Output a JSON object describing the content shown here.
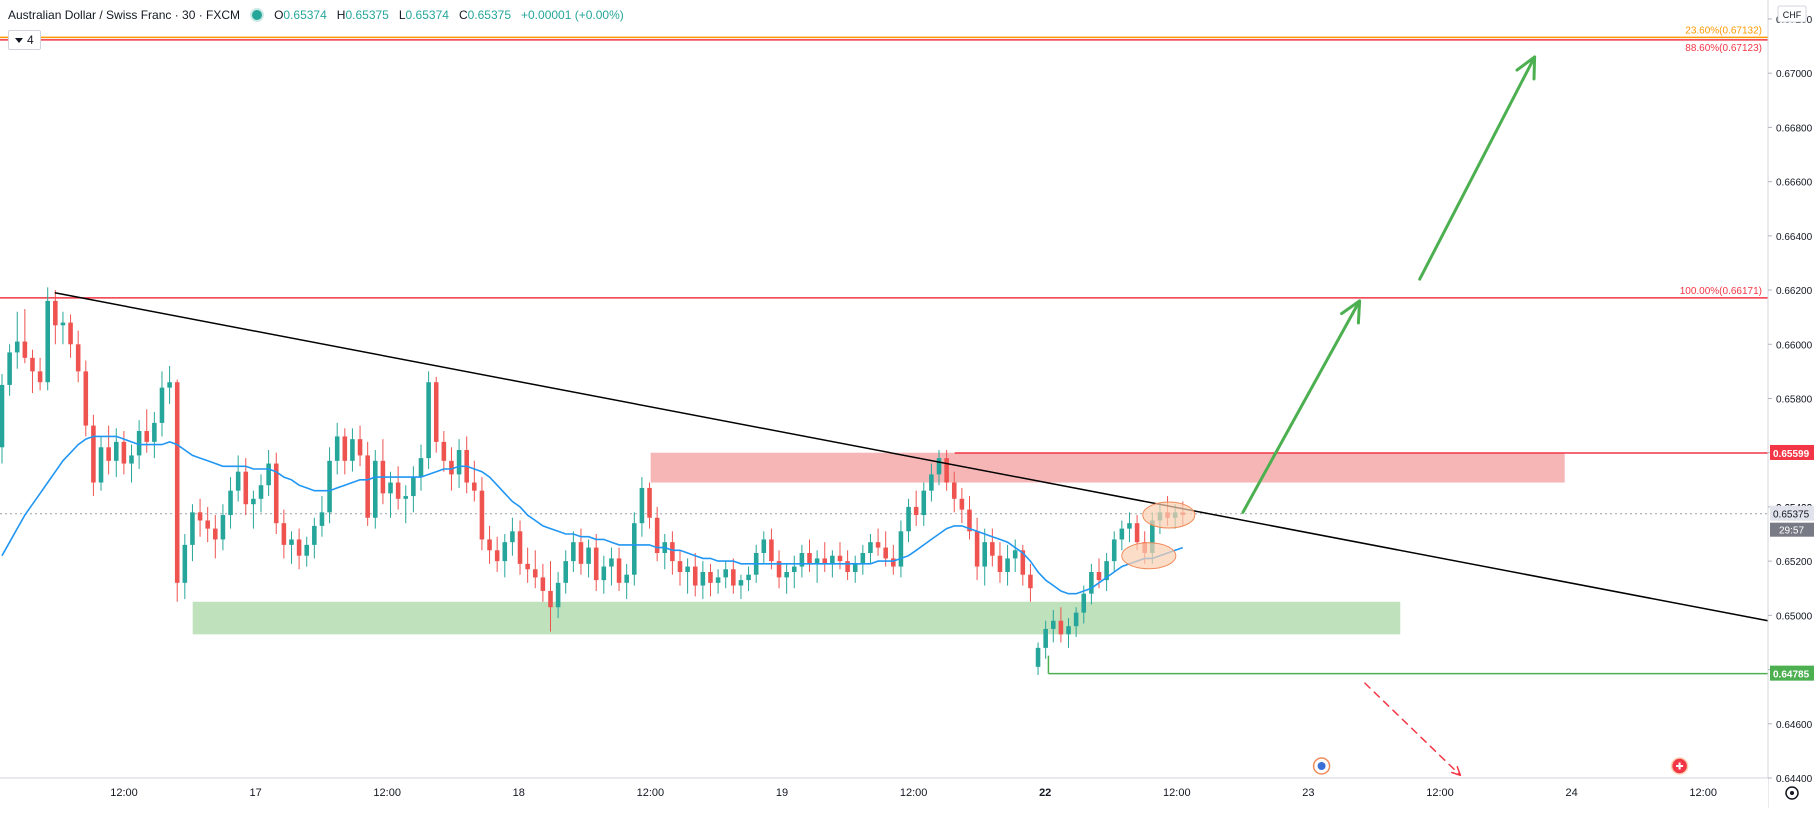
{
  "legend": {
    "symbol": "Australian Dollar / Swiss Franc · 30 · FXCM",
    "open_label": "O",
    "open": "0.65374",
    "high_label": "H",
    "high": "0.65375",
    "low_label": "L",
    "low": "0.65374",
    "close_label": "C",
    "close": "0.65375",
    "change": "+0.00001 (+0.00%)",
    "indicator_count": "4"
  },
  "colors": {
    "bull": "#26a69a",
    "bear": "#ef5350",
    "ma": "#2196f3",
    "trendline": "#000000",
    "resistance_zone": "#f5a9a9",
    "support_zone": "#b4dcb0",
    "arrow": "#4caf50",
    "fib_red": "#f23645",
    "fib_orange": "#ff9800",
    "support_line": "#4caf50",
    "ellipse_fill": "#fbd0b0",
    "ellipse_stroke": "#f08b5b"
  },
  "chart_data": {
    "type": "candlestick",
    "currency": "CHF",
    "ylim": [
      0.644,
      0.6727
    ],
    "x_ticks": [
      "12:00",
      "17",
      "12:00",
      "18",
      "12:00",
      "19",
      "12:00",
      "22",
      "12:00",
      "23",
      "12:00",
      "24",
      "12:00"
    ],
    "y_ticks": [
      "0.67200",
      "0.67000",
      "0.66800",
      "0.66600",
      "0.66400",
      "0.66200",
      "0.66000",
      "0.65800",
      "0.65600",
      "0.65400",
      "0.65200",
      "0.65000",
      "0.64800",
      "0.64600",
      "0.64400"
    ],
    "current_price": "0.65375",
    "countdown": "29:57",
    "hidden_label": "0.65400",
    "price_levels": [
      {
        "value": 0.65599,
        "label": "0.65599",
        "color": "#f23645"
      },
      {
        "value": 0.64785,
        "label": "0.64785",
        "color": "#4caf50"
      }
    ],
    "fib_levels": [
      {
        "value": 0.67132,
        "label": "23.60%(0.67132)",
        "color": "#ff9800"
      },
      {
        "value": 0.67123,
        "label": "88.60%(0.67123)",
        "color": "#f23645"
      },
      {
        "value": 0.66171,
        "label": "100.00%(0.66171)",
        "color": "#f23645"
      }
    ],
    "zones": [
      {
        "name": "resistance",
        "x_start": 0.368,
        "x_end": 0.885,
        "y_low": 0.6549,
        "y_high": 0.656
      },
      {
        "name": "support",
        "x_start": 0.109,
        "x_end": 0.792,
        "y_low": 0.6493,
        "y_high": 0.6505
      }
    ],
    "trendline": {
      "x1": 0.031,
      "y1": 0.6619,
      "x2": 1.0,
      "y2": 0.6498
    },
    "support_line_start": 0.593,
    "candles": [
      [
        0.6562,
        0.6589,
        0.6556,
        0.6585
      ],
      [
        0.6585,
        0.66,
        0.6581,
        0.6597
      ],
      [
        0.6597,
        0.6612,
        0.6591,
        0.6601
      ],
      [
        0.6601,
        0.6613,
        0.6593,
        0.6595
      ],
      [
        0.6595,
        0.6598,
        0.6582,
        0.659
      ],
      [
        0.659,
        0.6595,
        0.6583,
        0.6586
      ],
      [
        0.6586,
        0.6621,
        0.6583,
        0.6616
      ],
      [
        0.6616,
        0.662,
        0.66,
        0.6607
      ],
      [
        0.6607,
        0.6612,
        0.66,
        0.6608
      ],
      [
        0.6608,
        0.6611,
        0.6595,
        0.66
      ],
      [
        0.66,
        0.6605,
        0.6586,
        0.659
      ],
      [
        0.659,
        0.6594,
        0.6566,
        0.657
      ],
      [
        0.657,
        0.6574,
        0.6544,
        0.6549
      ],
      [
        0.6549,
        0.6566,
        0.6546,
        0.6562
      ],
      [
        0.6562,
        0.657,
        0.6552,
        0.6557
      ],
      [
        0.6557,
        0.6569,
        0.6551,
        0.6564
      ],
      [
        0.6564,
        0.6568,
        0.6552,
        0.6556
      ],
      [
        0.6556,
        0.6563,
        0.6549,
        0.6559
      ],
      [
        0.6559,
        0.6572,
        0.6554,
        0.6568
      ],
      [
        0.6568,
        0.6576,
        0.656,
        0.6564
      ],
      [
        0.6564,
        0.6575,
        0.6558,
        0.6571
      ],
      [
        0.6571,
        0.659,
        0.6566,
        0.6584
      ],
      [
        0.6584,
        0.6592,
        0.6578,
        0.6586
      ],
      [
        0.6586,
        0.6587,
        0.6505,
        0.6512
      ],
      [
        0.6512,
        0.653,
        0.6506,
        0.6526
      ],
      [
        0.6526,
        0.6541,
        0.652,
        0.6538
      ],
      [
        0.6538,
        0.6543,
        0.6529,
        0.6535
      ],
      [
        0.6535,
        0.654,
        0.6527,
        0.6532
      ],
      [
        0.6532,
        0.6537,
        0.6521,
        0.6528
      ],
      [
        0.6528,
        0.6541,
        0.6524,
        0.6537
      ],
      [
        0.6537,
        0.6551,
        0.6532,
        0.6546
      ],
      [
        0.6546,
        0.6559,
        0.6542,
        0.6553
      ],
      [
        0.6553,
        0.6558,
        0.6537,
        0.6541
      ],
      [
        0.6541,
        0.6546,
        0.6532,
        0.6543
      ],
      [
        0.6543,
        0.6552,
        0.6538,
        0.6548
      ],
      [
        0.6548,
        0.6561,
        0.6544,
        0.6556
      ],
      [
        0.6556,
        0.656,
        0.653,
        0.6534
      ],
      [
        0.6534,
        0.6539,
        0.6521,
        0.6526
      ],
      [
        0.6526,
        0.6531,
        0.6519,
        0.6528
      ],
      [
        0.6528,
        0.6532,
        0.6517,
        0.6522
      ],
      [
        0.6522,
        0.6529,
        0.6518,
        0.6526
      ],
      [
        0.6526,
        0.6536,
        0.6521,
        0.6533
      ],
      [
        0.6533,
        0.6544,
        0.6529,
        0.6538
      ],
      [
        0.6538,
        0.6562,
        0.6534,
        0.6557
      ],
      [
        0.6557,
        0.6571,
        0.6552,
        0.6566
      ],
      [
        0.6566,
        0.6569,
        0.6552,
        0.6557
      ],
      [
        0.6557,
        0.6569,
        0.6553,
        0.6565
      ],
      [
        0.6565,
        0.657,
        0.6555,
        0.6559
      ],
      [
        0.6559,
        0.6564,
        0.6533,
        0.6536
      ],
      [
        0.6536,
        0.6561,
        0.6532,
        0.6557
      ],
      [
        0.6557,
        0.6565,
        0.6541,
        0.6545
      ],
      [
        0.6545,
        0.6553,
        0.6536,
        0.6549
      ],
      [
        0.6549,
        0.6555,
        0.6539,
        0.6543
      ],
      [
        0.6543,
        0.6548,
        0.6534,
        0.6544
      ],
      [
        0.6544,
        0.6555,
        0.6538,
        0.6551
      ],
      [
        0.6551,
        0.6563,
        0.6546,
        0.6558
      ],
      [
        0.6558,
        0.659,
        0.6554,
        0.6586
      ],
      [
        0.6586,
        0.6588,
        0.656,
        0.6564
      ],
      [
        0.6564,
        0.6568,
        0.6553,
        0.6557
      ],
      [
        0.6557,
        0.6562,
        0.6546,
        0.6552
      ],
      [
        0.6552,
        0.6565,
        0.6547,
        0.6561
      ],
      [
        0.6561,
        0.6566,
        0.6545,
        0.6549
      ],
      [
        0.6549,
        0.6557,
        0.6542,
        0.6546
      ],
      [
        0.6546,
        0.6551,
        0.6524,
        0.6528
      ],
      [
        0.6528,
        0.6533,
        0.6519,
        0.6524
      ],
      [
        0.6524,
        0.6529,
        0.6516,
        0.652
      ],
      [
        0.652,
        0.653,
        0.6514,
        0.6527
      ],
      [
        0.6527,
        0.6536,
        0.6522,
        0.6531
      ],
      [
        0.6531,
        0.6535,
        0.6515,
        0.6519
      ],
      [
        0.6519,
        0.6525,
        0.6512,
        0.6517
      ],
      [
        0.6517,
        0.6524,
        0.651,
        0.6514
      ],
      [
        0.6514,
        0.6519,
        0.6505,
        0.6509
      ],
      [
        0.6509,
        0.652,
        0.6494,
        0.6503
      ],
      [
        0.6503,
        0.6516,
        0.6499,
        0.6512
      ],
      [
        0.6512,
        0.6524,
        0.6508,
        0.652
      ],
      [
        0.652,
        0.6531,
        0.6516,
        0.6527
      ],
      [
        0.6527,
        0.6532,
        0.6515,
        0.6519
      ],
      [
        0.6519,
        0.6528,
        0.6514,
        0.6525
      ],
      [
        0.6525,
        0.653,
        0.6509,
        0.6513
      ],
      [
        0.6513,
        0.6522,
        0.6508,
        0.6518
      ],
      [
        0.6518,
        0.6525,
        0.6511,
        0.6521
      ],
      [
        0.6521,
        0.6525,
        0.6509,
        0.6512
      ],
      [
        0.6512,
        0.6519,
        0.6506,
        0.6515
      ],
      [
        0.6515,
        0.6538,
        0.6511,
        0.6534
      ],
      [
        0.6534,
        0.6551,
        0.6529,
        0.6547
      ],
      [
        0.6547,
        0.6549,
        0.6532,
        0.6536
      ],
      [
        0.6536,
        0.654,
        0.652,
        0.6523
      ],
      [
        0.6523,
        0.653,
        0.6517,
        0.6527
      ],
      [
        0.6527,
        0.6531,
        0.6515,
        0.652
      ],
      [
        0.652,
        0.6524,
        0.6511,
        0.6516
      ],
      [
        0.6516,
        0.6521,
        0.6508,
        0.6518
      ],
      [
        0.6518,
        0.6523,
        0.6507,
        0.6511
      ],
      [
        0.6511,
        0.652,
        0.6506,
        0.6516
      ],
      [
        0.6516,
        0.6519,
        0.6507,
        0.6512
      ],
      [
        0.6512,
        0.6517,
        0.6508,
        0.6514
      ],
      [
        0.6514,
        0.652,
        0.651,
        0.6517
      ],
      [
        0.6517,
        0.6521,
        0.6508,
        0.6511
      ],
      [
        0.6511,
        0.6515,
        0.6506,
        0.6513
      ],
      [
        0.6513,
        0.6518,
        0.6509,
        0.6515
      ],
      [
        0.6515,
        0.6526,
        0.6512,
        0.6523
      ],
      [
        0.6523,
        0.6531,
        0.6519,
        0.6528
      ],
      [
        0.6528,
        0.6532,
        0.6517,
        0.652
      ],
      [
        0.652,
        0.6524,
        0.651,
        0.6514
      ],
      [
        0.6514,
        0.6519,
        0.6508,
        0.6516
      ],
      [
        0.6516,
        0.6522,
        0.651,
        0.6518
      ],
      [
        0.6518,
        0.6526,
        0.6514,
        0.6523
      ],
      [
        0.6523,
        0.6528,
        0.6516,
        0.6519
      ],
      [
        0.6519,
        0.6524,
        0.6512,
        0.6521
      ],
      [
        0.6521,
        0.6527,
        0.6516,
        0.6519
      ],
      [
        0.6519,
        0.6524,
        0.6514,
        0.6522
      ],
      [
        0.6522,
        0.6527,
        0.6517,
        0.652
      ],
      [
        0.652,
        0.6524,
        0.6513,
        0.6516
      ],
      [
        0.6516,
        0.6522,
        0.6512,
        0.6519
      ],
      [
        0.6519,
        0.6526,
        0.6515,
        0.6523
      ],
      [
        0.6523,
        0.653,
        0.6519,
        0.6527
      ],
      [
        0.6527,
        0.6532,
        0.6522,
        0.6525
      ],
      [
        0.6525,
        0.6531,
        0.6518,
        0.6521
      ],
      [
        0.6521,
        0.6526,
        0.6515,
        0.6518
      ],
      [
        0.6518,
        0.6535,
        0.6514,
        0.6531
      ],
      [
        0.6531,
        0.6543,
        0.6527,
        0.654
      ],
      [
        0.654,
        0.6546,
        0.6533,
        0.6537
      ],
      [
        0.6537,
        0.6549,
        0.6533,
        0.6546
      ],
      [
        0.6546,
        0.6556,
        0.6542,
        0.6552
      ],
      [
        0.6552,
        0.6561,
        0.6548,
        0.6558
      ],
      [
        0.6558,
        0.6561,
        0.6546,
        0.6549
      ],
      [
        0.6549,
        0.6553,
        0.6538,
        0.6543
      ],
      [
        0.6543,
        0.6547,
        0.6534,
        0.6539
      ],
      [
        0.6539,
        0.6544,
        0.6528,
        0.6531
      ],
      [
        0.6531,
        0.6536,
        0.6513,
        0.6518
      ],
      [
        0.6518,
        0.6532,
        0.6511,
        0.6527
      ],
      [
        0.6527,
        0.6532,
        0.6518,
        0.6522
      ],
      [
        0.6522,
        0.6527,
        0.6512,
        0.6516
      ],
      [
        0.6516,
        0.6526,
        0.6511,
        0.6521
      ],
      [
        0.6521,
        0.6528,
        0.6516,
        0.6524
      ],
      [
        0.6524,
        0.6526,
        0.6511,
        0.6515
      ],
      [
        0.6515,
        0.6519,
        0.6505,
        0.651
      ],
      [
        0.6481,
        0.649,
        0.6478,
        0.6488
      ],
      [
        0.6488,
        0.6498,
        0.6484,
        0.6495
      ],
      [
        0.6495,
        0.6502,
        0.649,
        0.6498
      ],
      [
        0.6498,
        0.6503,
        0.649,
        0.6493
      ],
      [
        0.6493,
        0.6499,
        0.6488,
        0.6496
      ],
      [
        0.6496,
        0.6503,
        0.6492,
        0.6501
      ],
      [
        0.6501,
        0.6511,
        0.6497,
        0.6508
      ],
      [
        0.6508,
        0.6519,
        0.6504,
        0.6516
      ],
      [
        0.6516,
        0.6521,
        0.651,
        0.6513
      ],
      [
        0.6513,
        0.6523,
        0.6509,
        0.652
      ],
      [
        0.652,
        0.6531,
        0.6516,
        0.6528
      ],
      [
        0.6528,
        0.6535,
        0.6524,
        0.6532
      ],
      [
        0.6532,
        0.6538,
        0.6527,
        0.6534
      ],
      [
        0.6534,
        0.6537,
        0.6524,
        0.6527
      ],
      [
        0.6527,
        0.6531,
        0.6519,
        0.6523
      ],
      [
        0.6523,
        0.6538,
        0.6519,
        0.6535
      ],
      [
        0.6535,
        0.6541,
        0.653,
        0.6538
      ],
      [
        0.6538,
        0.6544,
        0.6533,
        0.6536
      ],
      [
        0.6536,
        0.6541,
        0.6532,
        0.6538
      ],
      [
        0.6538,
        0.6542,
        0.6533,
        0.6537
      ]
    ],
    "ma_values": [
      0.6522,
      0.6527,
      0.6532,
      0.6537,
      0.6541,
      0.6545,
      0.6549,
      0.6553,
      0.6557,
      0.656,
      0.6563,
      0.6565,
      0.6566,
      0.6566,
      0.6566,
      0.6566,
      0.6565,
      0.6564,
      0.6563,
      0.6563,
      0.6563,
      0.6563,
      0.6564,
      0.6563,
      0.6561,
      0.6559,
      0.6558,
      0.6557,
      0.6556,
      0.6555,
      0.6555,
      0.6555,
      0.6555,
      0.6554,
      0.6554,
      0.6554,
      0.6553,
      0.6551,
      0.655,
      0.6548,
      0.6547,
      0.6546,
      0.6546,
      0.6546,
      0.6547,
      0.6548,
      0.6549,
      0.655,
      0.655,
      0.6551,
      0.6551,
      0.6551,
      0.6551,
      0.6551,
      0.6551,
      0.6551,
      0.6552,
      0.6553,
      0.6554,
      0.6554,
      0.6555,
      0.6555,
      0.6554,
      0.6553,
      0.6551,
      0.6548,
      0.6545,
      0.6542,
      0.654,
      0.6537,
      0.6535,
      0.6533,
      0.6532,
      0.6531,
      0.653,
      0.653,
      0.6529,
      0.6529,
      0.6528,
      0.6528,
      0.6527,
      0.6526,
      0.6526,
      0.6526,
      0.6526,
      0.6526,
      0.6525,
      0.6525,
      0.6524,
      0.6524,
      0.6523,
      0.6522,
      0.6521,
      0.6521,
      0.652,
      0.652,
      0.652,
      0.6519,
      0.6519,
      0.6519,
      0.6519,
      0.6519,
      0.6519,
      0.6519,
      0.6519,
      0.6519,
      0.6519,
      0.6519,
      0.6519,
      0.6519,
      0.6519,
      0.6519,
      0.6519,
      0.6519,
      0.6519,
      0.652,
      0.652,
      0.652,
      0.6521,
      0.6522,
      0.6524,
      0.6526,
      0.6528,
      0.653,
      0.6532,
      0.6533,
      0.6533,
      0.6532,
      0.6531,
      0.653,
      0.6529,
      0.6528,
      0.6527,
      0.6525,
      0.6523,
      0.652,
      0.6516,
      0.6513,
      0.6511,
      0.6509,
      0.6508,
      0.6508,
      0.6509,
      0.651,
      0.6512,
      0.6514,
      0.6516,
      0.6518,
      0.6519,
      0.652,
      0.6521,
      0.6521,
      0.6522,
      0.6523,
      0.6524,
      0.6525
    ]
  }
}
